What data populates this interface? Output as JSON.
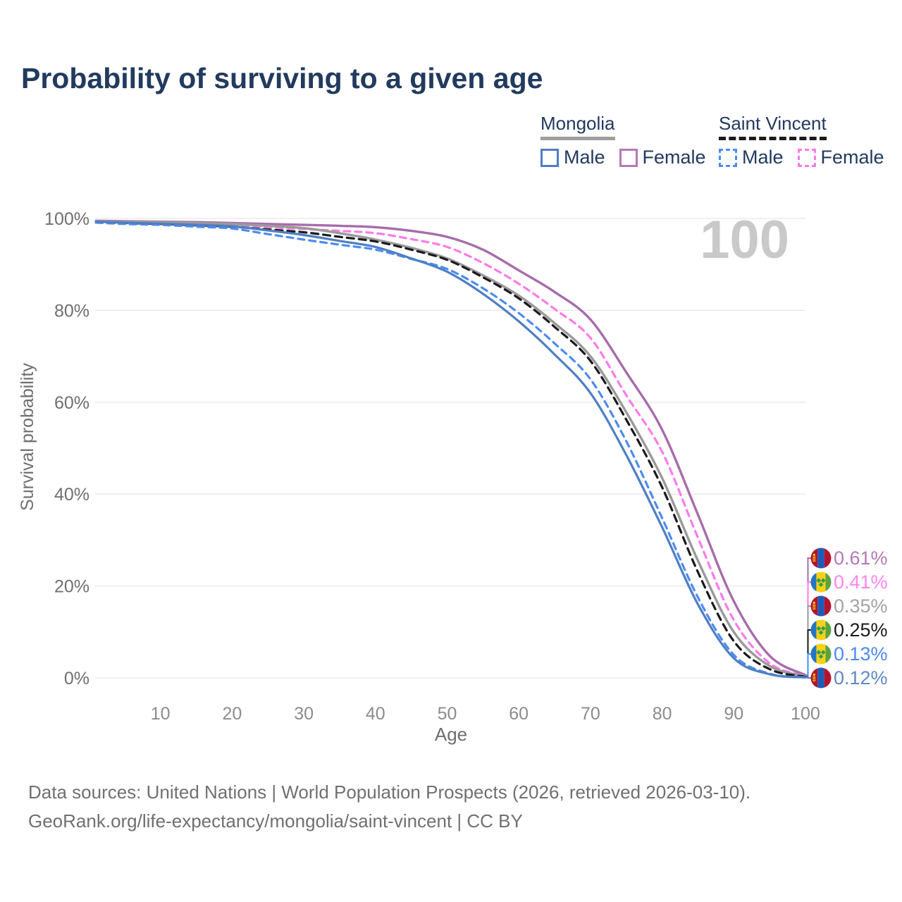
{
  "title": "Probability of surviving to a given age",
  "legend": {
    "groups": [
      {
        "name": "Mongolia",
        "line_style": "solid",
        "underline_color": "#9e9e9e",
        "items": [
          {
            "label": "Male",
            "color": "#4f7fc3",
            "dashed": false
          },
          {
            "label": "Female",
            "color": "#b878b8",
            "dashed": false
          }
        ]
      },
      {
        "name": "Saint Vincent",
        "line_style": "dashed",
        "underline_color": "#1a1a1a",
        "items": [
          {
            "label": "Male",
            "color": "#4d8bf5",
            "dashed": true
          },
          {
            "label": "Female",
            "color": "#fb7be9",
            "dashed": true
          }
        ]
      }
    ]
  },
  "chart_data": {
    "type": "line",
    "xlabel": "Age",
    "ylabel": "Survival probability",
    "xlim": [
      0,
      100
    ],
    "ylim": [
      0,
      100
    ],
    "x_ticks": [
      10,
      20,
      30,
      40,
      50,
      60,
      70,
      80,
      90,
      100
    ],
    "y_ticks": [
      {
        "value": 100,
        "label": "100%"
      },
      {
        "value": 80,
        "label": "80%"
      },
      {
        "value": 60,
        "label": "60%"
      },
      {
        "value": 40,
        "label": "40%"
      },
      {
        "value": 20,
        "label": "20%"
      },
      {
        "value": 0,
        "label": "0%"
      }
    ],
    "watermark": "100",
    "grid": "horizontal-only",
    "x": [
      1,
      5,
      10,
      15,
      20,
      25,
      30,
      35,
      40,
      45,
      50,
      55,
      60,
      65,
      70,
      75,
      80,
      85,
      90,
      95,
      100
    ],
    "series": [
      {
        "name": "Mongolia Female",
        "country": "Mongolia",
        "sex": "Female",
        "color": "#a76cab",
        "dash": null,
        "width": 3.4,
        "values": [
          99.5,
          99.4,
          99.3,
          99.2,
          99.0,
          98.8,
          98.6,
          98.4,
          98.1,
          97.3,
          96.0,
          93.2,
          88.7,
          84.0,
          78.0,
          66.5,
          54.0,
          35.5,
          16.7,
          4.8,
          0.61
        ],
        "end_label": {
          "text": "0.61%",
          "color": "#b57ab5",
          "flag": "mongolia"
        }
      },
      {
        "name": "Saint Vincent Female",
        "country": "Saint Vincent",
        "sex": "Female",
        "color": "#fb7be9",
        "dash": "9 7",
        "width": 3.2,
        "values": [
          99.3,
          99.1,
          99.0,
          98.8,
          98.5,
          98.1,
          97.7,
          97.3,
          96.8,
          95.5,
          93.8,
          90.3,
          85.8,
          80.3,
          74.0,
          61.5,
          49.2,
          30.5,
          12.6,
          3.2,
          0.41
        ],
        "end_label": {
          "text": "0.41%",
          "color": "#ff85ef",
          "flag": "saint-vincent"
        }
      },
      {
        "name": "Mongolia Both sexes",
        "country": "Mongolia",
        "sex": "Both",
        "color": "#9a9a9a",
        "dash": null,
        "width": 3.4,
        "values": [
          99.4,
          99.3,
          99.2,
          99.0,
          98.8,
          98.4,
          97.9,
          96.8,
          95.4,
          93.6,
          91.3,
          87.6,
          83.2,
          77.2,
          70.0,
          57.8,
          43.5,
          25.5,
          10.0,
          2.6,
          0.35
        ],
        "end_label": {
          "text": "0.35%",
          "color": "#a3a3a3",
          "flag": "mongolia"
        }
      },
      {
        "name": "Saint Vincent Both sexes",
        "country": "Saint Vincent",
        "sex": "Both",
        "color": "#1a1a1a",
        "dash": "10 7",
        "width": 3.2,
        "values": [
          99.2,
          99.0,
          98.8,
          98.5,
          98.2,
          97.6,
          97.0,
          96.0,
          95.0,
          93.2,
          91.0,
          87.2,
          82.6,
          76.4,
          69.0,
          56.2,
          41.5,
          23.0,
          8.0,
          1.9,
          0.25
        ],
        "end_label": {
          "text": "0.25%",
          "color": "#1a1a1a",
          "flag": "saint-vincent"
        }
      },
      {
        "name": "Saint Vincent Male",
        "country": "Saint Vincent",
        "sex": "Male",
        "color": "#4d8bf5",
        "dash": "9 7",
        "width": 3.2,
        "values": [
          99.1,
          98.8,
          98.6,
          98.2,
          97.8,
          96.6,
          95.4,
          94.3,
          93.2,
          91.2,
          89.0,
          84.8,
          79.4,
          72.8,
          65.0,
          51.5,
          34.8,
          17.5,
          5.0,
          0.9,
          0.13
        ],
        "end_label": {
          "text": "0.13%",
          "color": "#4d8bf5",
          "flag": "saint-vincent"
        }
      },
      {
        "name": "Mongolia Male",
        "country": "Mongolia",
        "sex": "Male",
        "color": "#4f7fc3",
        "dash": null,
        "width": 3.2,
        "values": [
          99.3,
          99.1,
          98.9,
          98.6,
          98.3,
          97.4,
          96.4,
          95.1,
          93.8,
          91.3,
          88.4,
          83.6,
          77.6,
          70.4,
          62.0,
          48.5,
          32.8,
          16.0,
          4.3,
          0.8,
          0.12
        ],
        "end_label": {
          "text": "0.12%",
          "color": "#6189c7",
          "flag": "mongolia"
        }
      }
    ]
  },
  "flags": {
    "mongolia": {
      "red": "#b5122e",
      "blue": "#1f5bb5",
      "yellow": "#f7c910"
    },
    "saint_vincent": {
      "blue": "#2476c4",
      "yellow": "#fcd116",
      "green": "#59a33e",
      "diamond": "#2f9e4f"
    }
  },
  "colors": {
    "title": "#223a5e",
    "gridline": "#e8e8e8",
    "y_tick": "#6f6f6f",
    "x_tick": "#8c8c8c",
    "axis_title": "#6f6f6f",
    "watermark": "#c9c9c9",
    "footer": "#707070"
  },
  "footer": {
    "line1": "Data sources: United Nations | World Population Prospects (2026, retrieved 2026-03-10).",
    "line2": "GeoRank.org/life-expectancy/mongolia/saint-vincent | CC BY"
  }
}
